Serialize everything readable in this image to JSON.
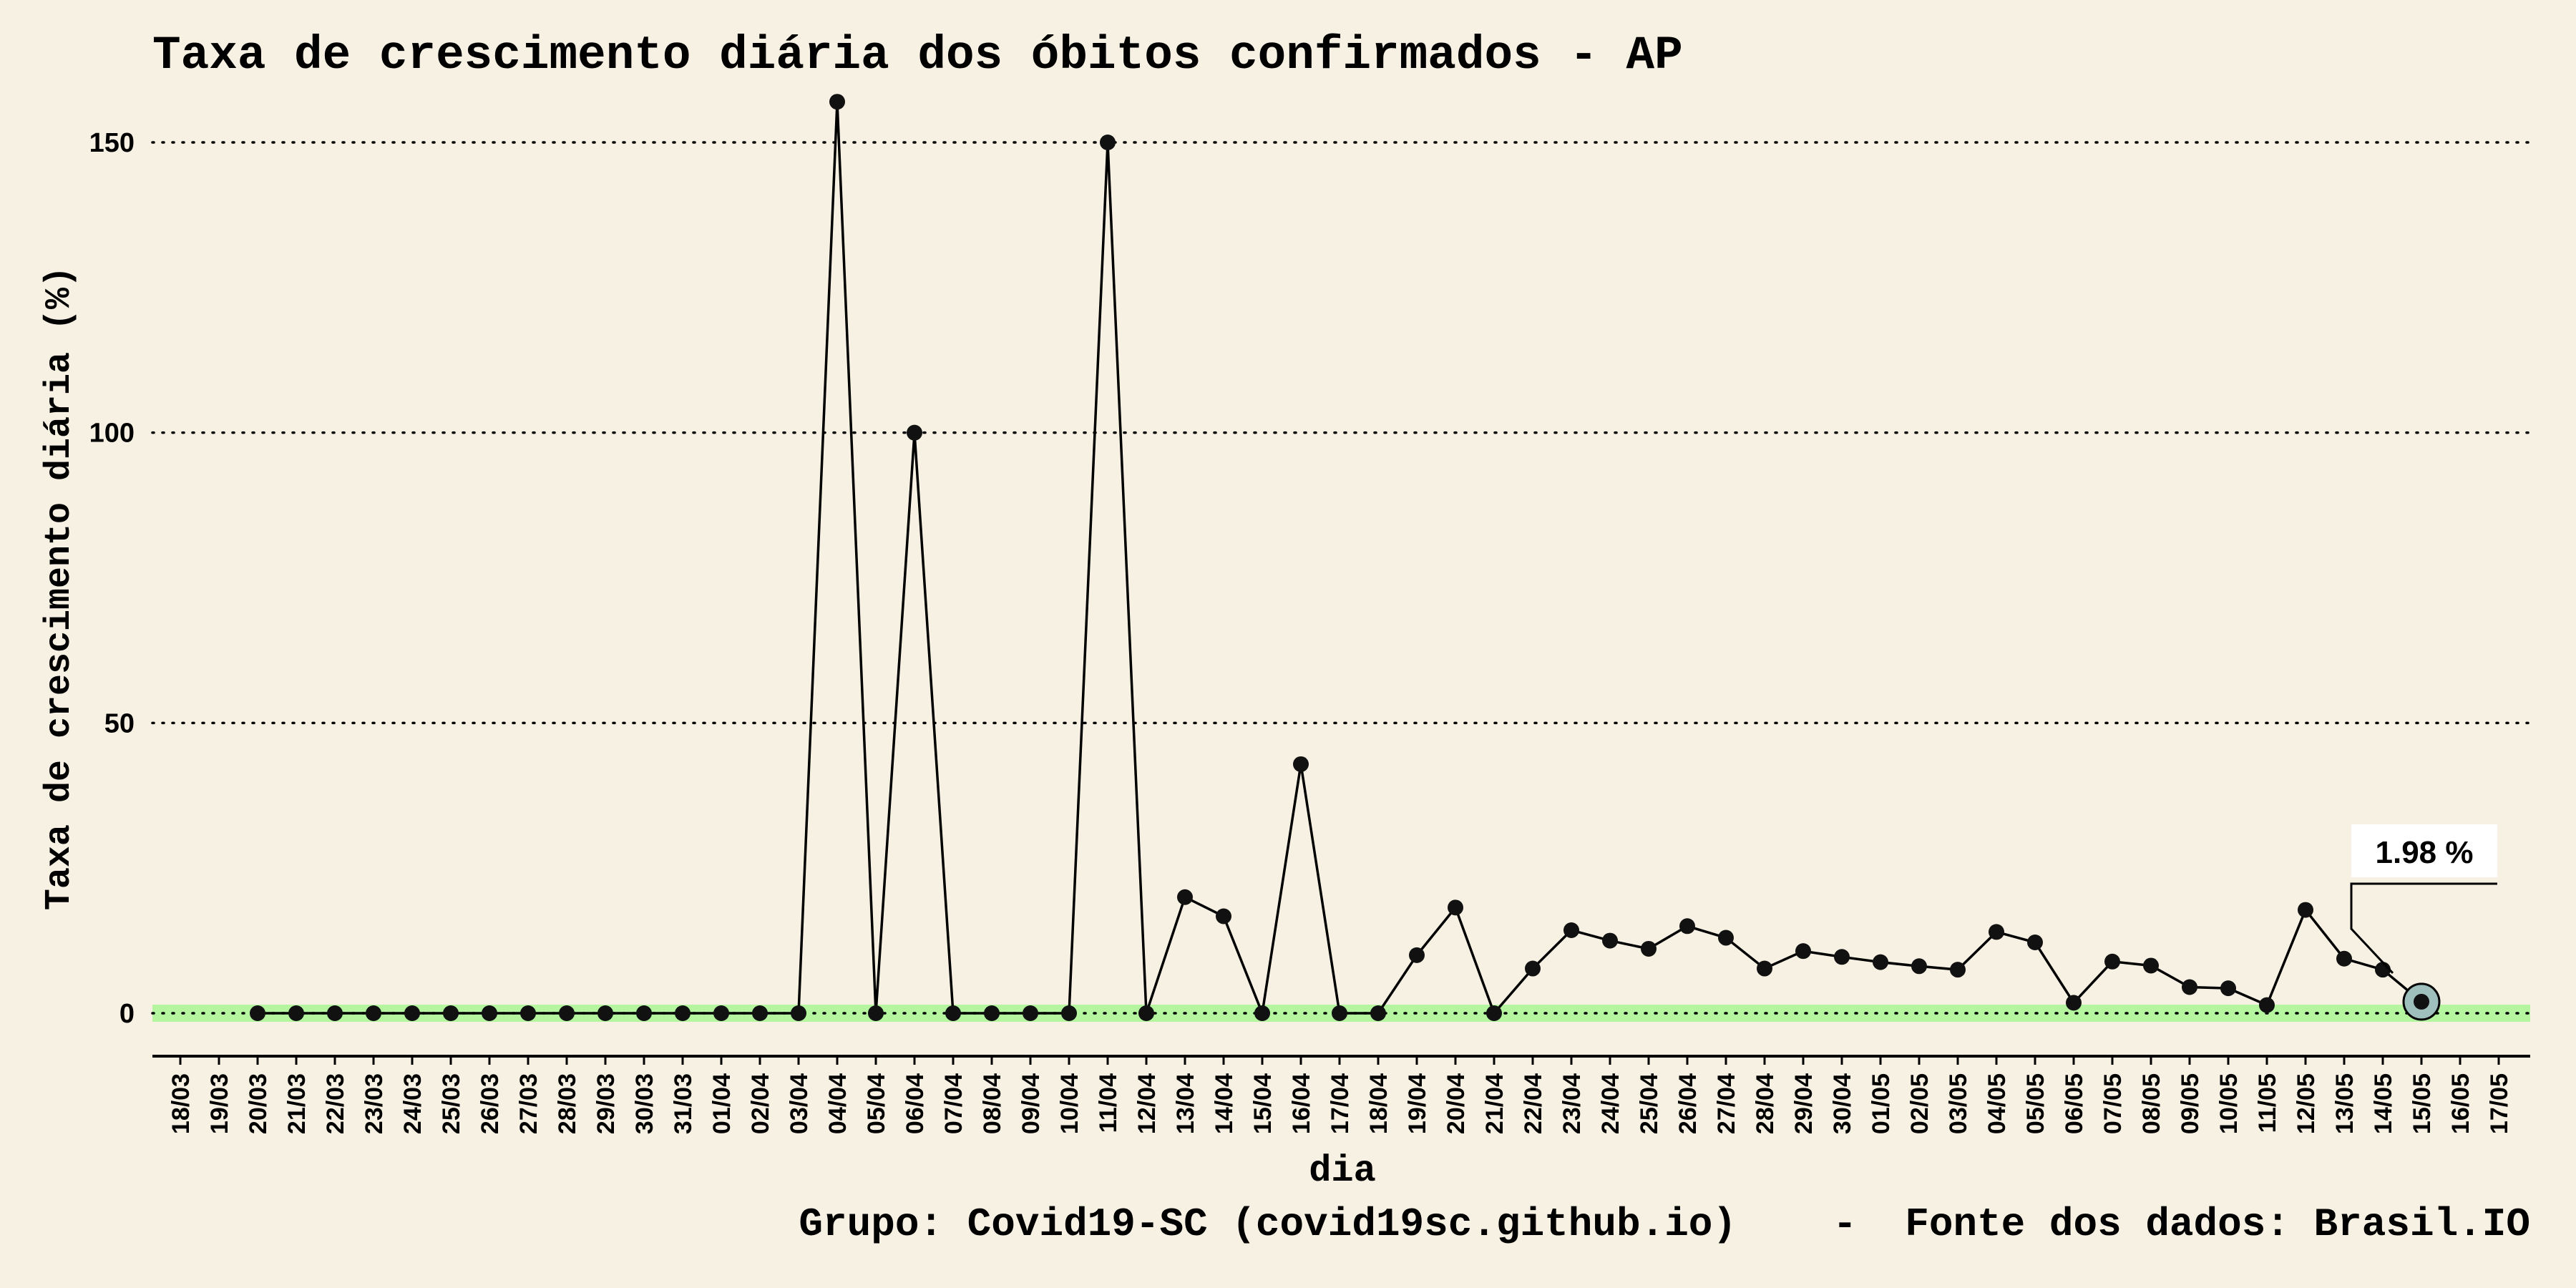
{
  "chart_data": {
    "type": "line",
    "title": "Taxa de crescimento diária dos óbitos confirmados - AP",
    "xlabel": "dia",
    "ylabel": "Taxa de crescimento diária (%)",
    "caption": "Grupo: Covid19-SC (covid19sc.github.io)    -  Fonte dos dados: Brasil.IO",
    "y_ticks": [
      0,
      50,
      100,
      150
    ],
    "ylim": [
      -7.5,
      160
    ],
    "grid": "horizontal dotted",
    "categories": [
      "18/03",
      "19/03",
      "20/03",
      "21/03",
      "22/03",
      "23/03",
      "24/03",
      "25/03",
      "26/03",
      "27/03",
      "28/03",
      "29/03",
      "30/03",
      "31/03",
      "01/04",
      "02/04",
      "03/04",
      "04/04",
      "05/04",
      "06/04",
      "07/04",
      "08/04",
      "09/04",
      "10/04",
      "11/04",
      "12/04",
      "13/04",
      "14/04",
      "15/04",
      "16/04",
      "17/04",
      "18/04",
      "19/04",
      "20/04",
      "21/04",
      "22/04",
      "23/04",
      "24/04",
      "25/04",
      "26/04",
      "27/04",
      "28/04",
      "29/04",
      "30/04",
      "01/05",
      "02/05",
      "03/05",
      "04/05",
      "05/05",
      "06/05",
      "07/05",
      "08/05",
      "09/05",
      "10/05",
      "11/05",
      "12/05",
      "13/05",
      "14/05",
      "15/05",
      "16/05",
      "17/05"
    ],
    "series": [
      {
        "points": [
          [
            "20/03",
            0
          ],
          [
            "21/03",
            0
          ],
          [
            "22/03",
            0
          ],
          [
            "23/03",
            0
          ],
          [
            "24/03",
            0
          ],
          [
            "25/03",
            0
          ],
          [
            "26/03",
            0
          ],
          [
            "27/03",
            0
          ],
          [
            "28/03",
            0
          ],
          [
            "29/03",
            0
          ],
          [
            "30/03",
            0
          ],
          [
            "31/03",
            0
          ],
          [
            "01/04",
            0
          ],
          [
            "02/04",
            0
          ],
          [
            "03/04",
            0
          ],
          [
            "04/04",
            157
          ],
          [
            "05/04",
            0
          ],
          [
            "06/04",
            100
          ],
          [
            "07/04",
            0
          ],
          [
            "08/04",
            0
          ],
          [
            "09/04",
            0
          ],
          [
            "10/04",
            0
          ],
          [
            "11/04",
            150
          ],
          [
            "12/04",
            0
          ],
          [
            "13/04",
            20
          ],
          [
            "14/04",
            16.7
          ],
          [
            "15/04",
            0
          ],
          [
            "16/04",
            42.9
          ],
          [
            "17/04",
            0
          ],
          [
            "18/04",
            0
          ],
          [
            "19/04",
            10
          ],
          [
            "20/04",
            18.2
          ],
          [
            "21/04",
            0
          ],
          [
            "22/04",
            7.7
          ],
          [
            "23/04",
            14.3
          ],
          [
            "24/04",
            12.5
          ],
          [
            "25/04",
            11.1
          ],
          [
            "26/04",
            15
          ],
          [
            "27/04",
            13
          ],
          [
            "28/04",
            7.7
          ],
          [
            "29/04",
            10.7
          ],
          [
            "30/04",
            9.7
          ],
          [
            "01/05",
            8.8
          ],
          [
            "02/05",
            8.1
          ],
          [
            "03/05",
            7.5
          ],
          [
            "04/05",
            14
          ],
          [
            "05/05",
            12.2
          ],
          [
            "06/05",
            1.8
          ],
          [
            "07/05",
            8.9
          ],
          [
            "08/05",
            8.2
          ],
          [
            "09/05",
            4.5
          ],
          [
            "10/05",
            4.3
          ],
          [
            "11/05",
            1.4
          ],
          [
            "12/05",
            17.8
          ],
          [
            "13/05",
            9.4
          ],
          [
            "14/05",
            7.5
          ],
          [
            "15/05",
            1.98
          ]
        ]
      }
    ],
    "highlight": {
      "category": "15/05",
      "value": 1.98,
      "label": "1.98 %"
    },
    "colors": {
      "background": "#f7f1e3",
      "line": "#000000",
      "zero_band": "#b5f5a0",
      "highlight_fill": "#9fbfbd",
      "grid": "#000000"
    }
  }
}
